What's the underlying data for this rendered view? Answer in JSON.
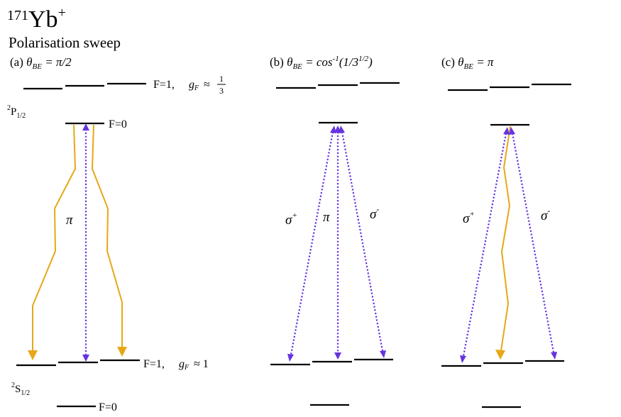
{
  "header": {
    "mass_number": "171",
    "element": "Yb",
    "charge": "+",
    "subtitle": "Polarisation sweep"
  },
  "panels": [
    {
      "label": "(a)",
      "theta_symbol": "θ",
      "theta_sub": "BE",
      "value": "= π/2",
      "value_parts": null
    },
    {
      "label": "(b)",
      "theta_symbol": "θ",
      "theta_sub": "BE",
      "value": "= cos",
      "value_parts": {
        "sup": "-1",
        "mid": "(1/3",
        "sup2": "1/2",
        "end": ")"
      }
    },
    {
      "label": "(c)",
      "theta_symbol": "θ",
      "theta_sub": "BE",
      "value": "= π",
      "value_parts": null
    }
  ],
  "levels": {
    "p_state": {
      "term": "2",
      "letter": "P",
      "sub": "1/2"
    },
    "s_state": {
      "term": "2",
      "letter": "S",
      "sub": "1/2"
    },
    "upper_f1": "F=1,",
    "upper_f1_g": "g",
    "upper_f1_gsub": "F",
    "upper_f1_approx": "≈",
    "upper_f1_num": "1",
    "upper_f1_den": "3",
    "f0_p": "F=0",
    "lower_f1": "F=1,",
    "lower_f1_g": "g",
    "lower_f1_gsub": "F",
    "lower_f1_approx": "≈ 1",
    "f0_s": "F=0"
  },
  "transitions": {
    "pi": "π",
    "sigma": "σ",
    "plus": "+",
    "minus": "-"
  },
  "colors": {
    "laser": "#6633e0",
    "decay": "#e6a817",
    "levels": "#000000"
  }
}
